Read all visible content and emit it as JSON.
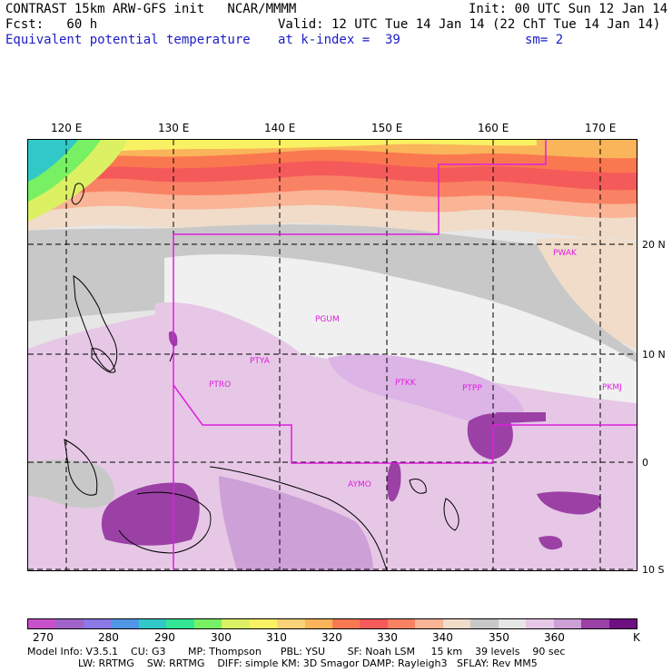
{
  "header": {
    "line1_left": "CONTRAST 15km ARW-GFS init   NCAR/MMMM",
    "line1_right": "Init: 00 UTC Sun 12 Jan 14",
    "line2_left": "Fcst:   60 h",
    "line2_right": "Valid: 12 UTC Tue 14 Jan 14 (22 ChT Tue 14 Jan 14)",
    "line3_left": "Equivalent potential temperature",
    "line3_mid": "at k-index =  39",
    "line3_right": "sm= 2"
  },
  "map": {
    "lon_labels": [
      "120 E",
      "130 E",
      "140 E",
      "150 E",
      "160 E",
      "170 E"
    ],
    "lat_labels": [
      "20 N",
      "10 N",
      "0",
      "10 S"
    ],
    "stations": [
      "PGUM",
      "PTYA",
      "PTRO",
      "PTKK",
      "PTPP",
      "PKMJ",
      "PWAK",
      "AYMO"
    ]
  },
  "colorbar": {
    "colors": [
      "#c850c8",
      "#a064c8",
      "#8c78e6",
      "#5096e6",
      "#32c8c8",
      "#32e696",
      "#78f064",
      "#dcf064",
      "#faf064",
      "#fad278",
      "#fab45a",
      "#fa7850",
      "#f55a5a",
      "#fa8264",
      "#fab496",
      "#f0dcc8",
      "#c8c8c8",
      "#e6e6e6",
      "#e6c8e6",
      "#cda0d7",
      "#9b41a5",
      "#6e0f82"
    ],
    "labels": [
      "270",
      "280",
      "290",
      "300",
      "310",
      "320",
      "330",
      "340",
      "350",
      "360",
      "K"
    ]
  },
  "footer": {
    "line1": "Model Info: V3.5.1    CU: G3       MP: Thompson      PBL: YSU       SF: Noah LSM     15 km    39 levels    90 sec",
    "line2": "                LW: RRTMG    SW: RRTMG    DIFF: simple KM: 3D Smagor DAMP: Rayleigh3   SFLAY: Rev MM5"
  }
}
